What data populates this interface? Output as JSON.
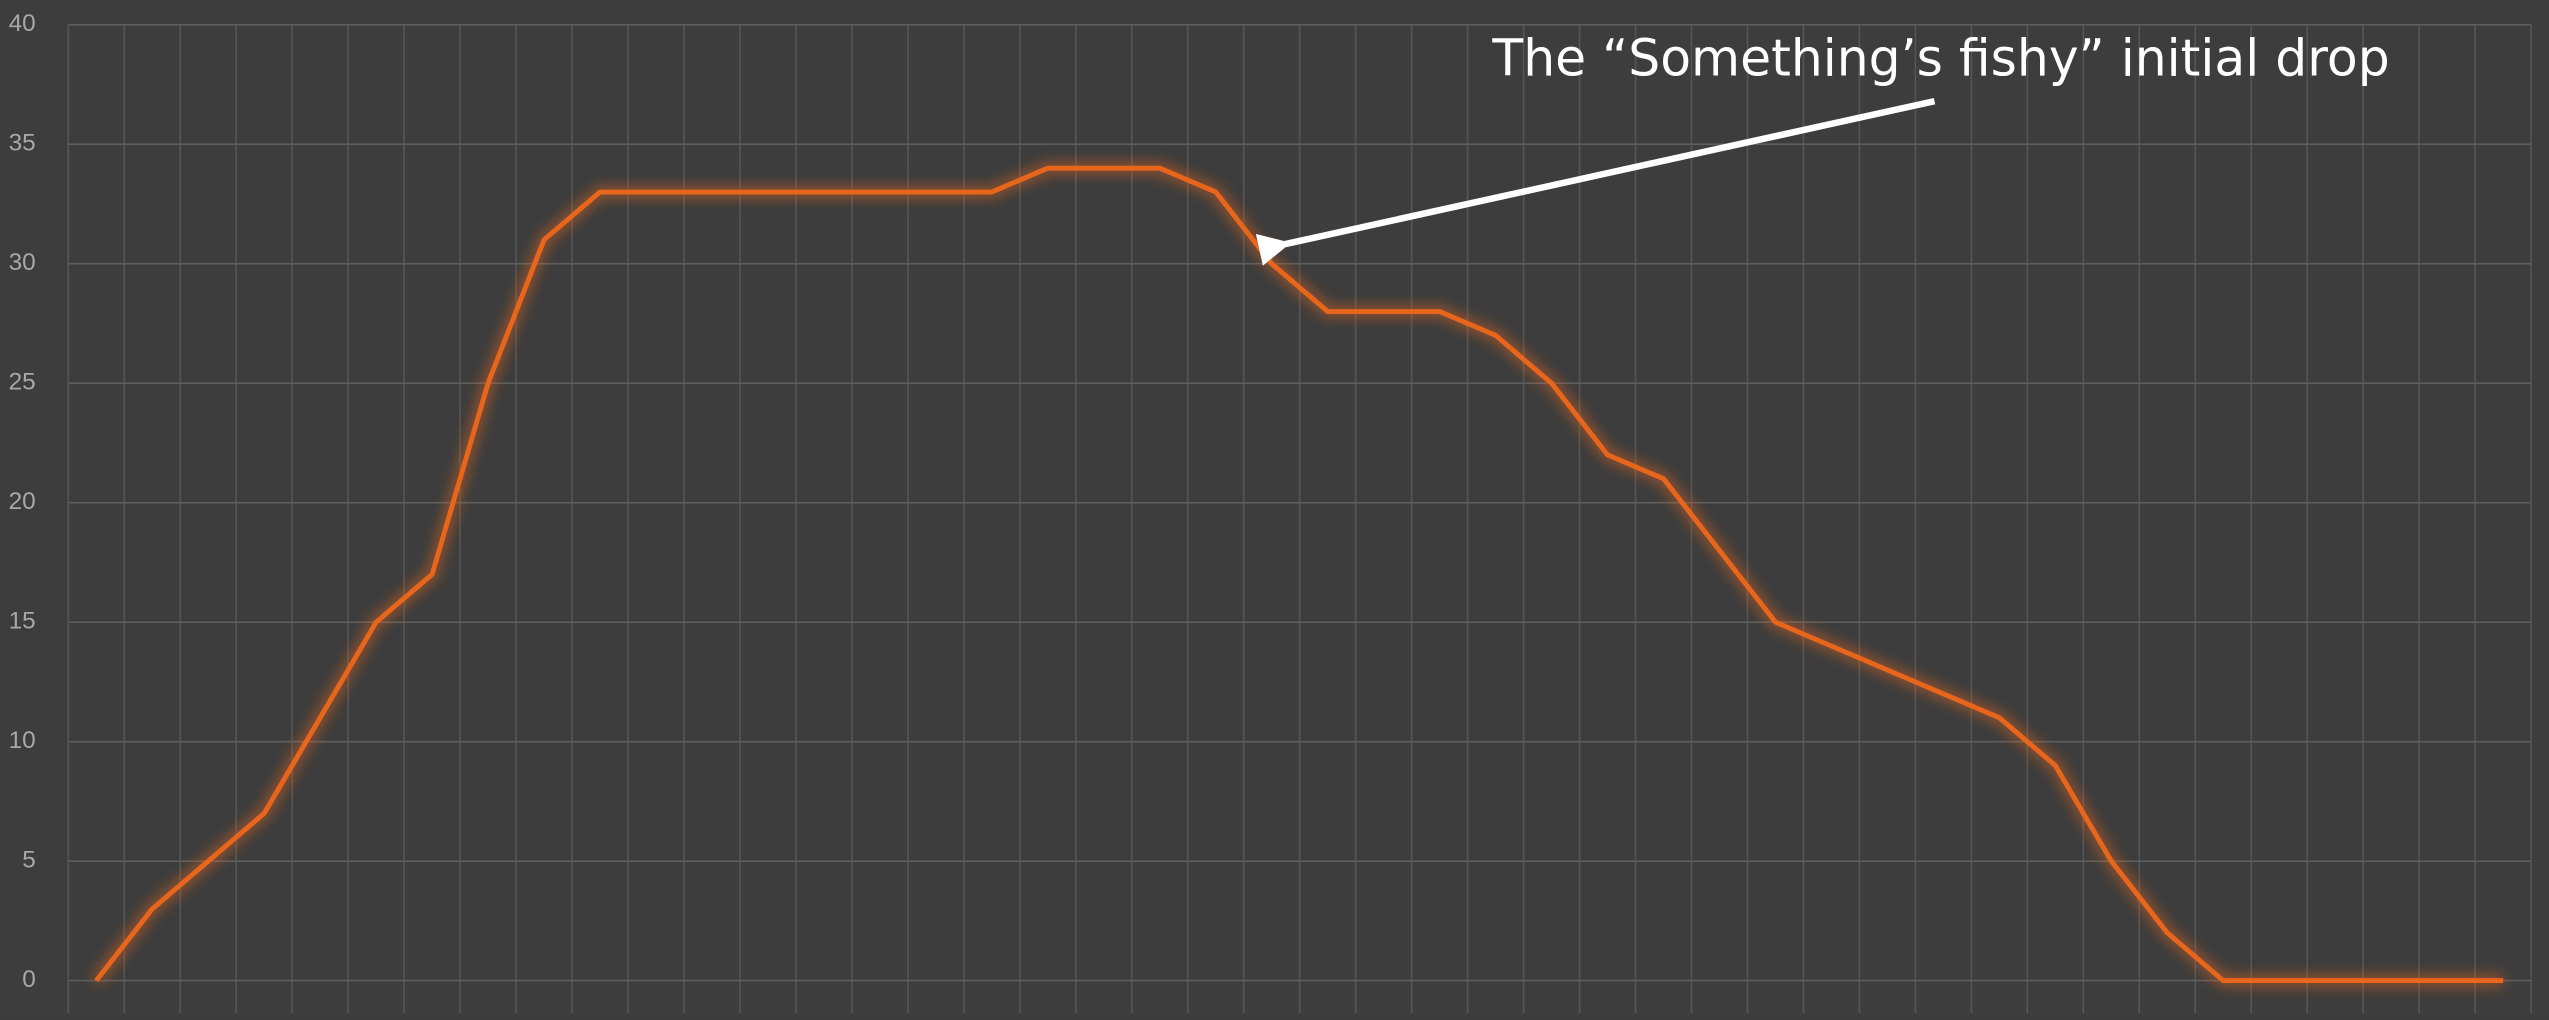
{
  "chart_data": {
    "type": "line",
    "categories": [
      null,
      null,
      null,
      null,
      null,
      null,
      null,
      null,
      null,
      null,
      null,
      null,
      null,
      null,
      null,
      null,
      null,
      null,
      null,
      null,
      null,
      null,
      null,
      null,
      null,
      null,
      null,
      null,
      null,
      null,
      null,
      null,
      null,
      null,
      null,
      null,
      null,
      null,
      null,
      null,
      null,
      null,
      null,
      null
    ],
    "series": [
      {
        "color": "#e8661c",
        "values": [
          0,
          3,
          5,
          7,
          11,
          15,
          17,
          25,
          31,
          33,
          33,
          33,
          33,
          33,
          33,
          33,
          33,
          34,
          34,
          34,
          33,
          30,
          28,
          28,
          28,
          27,
          25,
          22,
          21,
          18,
          15,
          14,
          13,
          12,
          11,
          9,
          5,
          2,
          0,
          0,
          0,
          0,
          0,
          0
        ]
      }
    ],
    "ylim": [
      0,
      40
    ],
    "yticks": [
      0,
      5,
      10,
      15,
      20,
      25,
      30,
      35,
      40
    ],
    "grid": true,
    "annotations": [
      {
        "text": "The “Something’s fishy” initial drop",
        "index": 21
      }
    ]
  }
}
